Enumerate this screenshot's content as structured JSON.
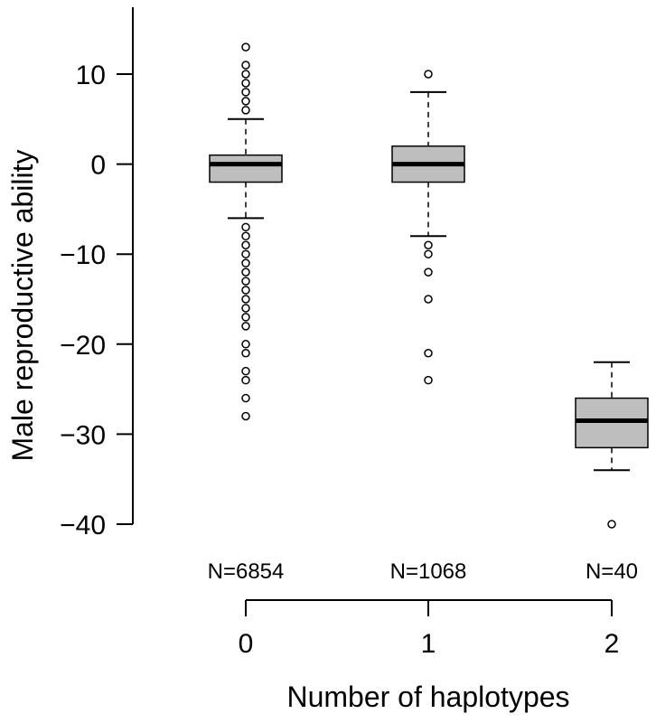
{
  "chart_data": {
    "type": "box",
    "xlabel": "Number of haplotypes",
    "ylabel": "Male reproductive ability",
    "ylim": [
      -40,
      13
    ],
    "yticks": [
      10,
      0,
      -10,
      -20,
      -30,
      -40
    ],
    "ytick_labels": [
      "10",
      "0",
      "−10",
      "−20",
      "−30",
      "−40"
    ],
    "categories": [
      "0",
      "1",
      "2"
    ],
    "n_labels": [
      "N=6854",
      "N=1068",
      "N=40"
    ],
    "grid": false,
    "legend": "none",
    "box_fill": "#bebebe",
    "boxes": [
      {
        "category": "0",
        "q1": -2,
        "median": 0,
        "q3": 1,
        "whisker_low": -6,
        "whisker_high": 5,
        "outliers": [
          13,
          11,
          10,
          9,
          8,
          7,
          6,
          -7,
          -8,
          -9,
          -10,
          -11,
          -12,
          -13,
          -14,
          -15,
          -16,
          -17,
          -18,
          -20,
          -21,
          -23,
          -24,
          -26,
          -28
        ]
      },
      {
        "category": "1",
        "q1": -2,
        "median": 0,
        "q3": 2,
        "whisker_low": -8,
        "whisker_high": 8,
        "outliers": [
          10,
          -9,
          -10,
          -12,
          -15,
          -21,
          -24
        ]
      },
      {
        "category": "2",
        "q1": -31.5,
        "median": -28.5,
        "q3": -26,
        "whisker_low": -34,
        "whisker_high": -22,
        "outliers": [
          -40
        ]
      }
    ]
  }
}
